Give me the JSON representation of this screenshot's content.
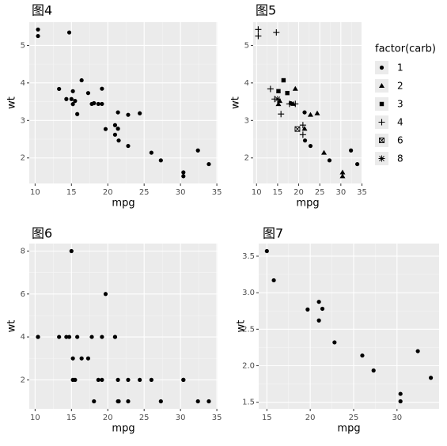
{
  "chart_data": [
    {
      "type": "scatter",
      "title": "图4",
      "xlabel": "mpg",
      "ylabel": "wt",
      "grid": true,
      "color": "#000000",
      "x": [
        21.0,
        21.0,
        22.8,
        21.4,
        18.7,
        18.1,
        14.3,
        24.4,
        22.8,
        19.2,
        17.8,
        16.4,
        17.3,
        15.2,
        10.4,
        10.4,
        14.7,
        32.4,
        30.4,
        33.9,
        21.5,
        15.5,
        15.2,
        13.3,
        19.2,
        27.3,
        26.0,
        30.4,
        15.8,
        19.7,
        15.0,
        21.4
      ],
      "y": [
        2.62,
        2.875,
        2.32,
        3.215,
        3.44,
        3.46,
        3.57,
        3.19,
        3.15,
        3.44,
        3.44,
        4.07,
        3.73,
        3.78,
        5.25,
        5.424,
        5.345,
        2.2,
        1.615,
        1.835,
        2.465,
        3.52,
        3.435,
        3.84,
        3.845,
        1.935,
        2.14,
        1.513,
        3.17,
        2.77,
        3.57,
        2.78
      ],
      "xlim": [
        9.2,
        35.1
      ],
      "ylim": [
        1.32,
        5.62
      ],
      "xticks": [
        10,
        15,
        20,
        25,
        30,
        35
      ],
      "yticks": [
        2,
        3,
        4,
        5
      ]
    },
    {
      "type": "scatter",
      "title": "图5",
      "xlabel": "mpg",
      "ylabel": "wt",
      "grid": true,
      "legend_title": "factor(carb)",
      "legend": "right",
      "series": [
        {
          "name": "1",
          "color": "#000000",
          "shape": "circle",
          "x": [
            22.8,
            21.4,
            18.1,
            32.4,
            33.9,
            21.5,
            27.3
          ],
          "y": [
            2.32,
            3.215,
            3.46,
            2.2,
            1.835,
            2.465,
            1.935
          ]
        },
        {
          "name": "2",
          "color": "#000000",
          "shape": "triangle",
          "x": [
            18.7,
            24.4,
            22.8,
            30.4,
            15.5,
            15.2,
            19.2,
            26.0,
            30.4,
            21.4
          ],
          "y": [
            3.44,
            3.19,
            3.15,
            1.615,
            3.52,
            3.435,
            3.845,
            2.14,
            1.513,
            2.78
          ]
        },
        {
          "name": "3",
          "color": "#000000",
          "shape": "square",
          "x": [
            16.4,
            17.3,
            15.2
          ],
          "y": [
            4.07,
            3.73,
            3.78
          ]
        },
        {
          "name": "4",
          "color": "#000000",
          "shape": "plus",
          "x": [
            21.0,
            21.0,
            14.3,
            19.2,
            17.8,
            10.4,
            10.4,
            14.7,
            13.3,
            15.8
          ],
          "y": [
            2.62,
            2.875,
            3.57,
            3.44,
            3.44,
            5.25,
            5.424,
            5.345,
            3.84,
            3.17
          ]
        },
        {
          "name": "6",
          "color": "#000000",
          "shape": "boxcross",
          "x": [
            19.7
          ],
          "y": [
            2.77
          ]
        },
        {
          "name": "8",
          "color": "#000000",
          "shape": "asterisk",
          "x": [
            15.0
          ],
          "y": [
            3.57
          ]
        }
      ],
      "xlim": [
        9.2,
        35.1
      ],
      "ylim": [
        1.32,
        5.62
      ],
      "xticks": [
        10,
        15,
        20,
        25,
        30,
        35
      ],
      "yticks": [
        2,
        3,
        4,
        5
      ]
    },
    {
      "type": "scatter",
      "title": "图6",
      "xlabel": "mpg",
      "ylabel": "wt",
      "grid": true,
      "color": "#000000",
      "x": [
        21.0,
        21.0,
        22.8,
        21.4,
        18.7,
        18.1,
        14.3,
        24.4,
        22.8,
        19.2,
        17.8,
        16.4,
        17.3,
        15.2,
        10.4,
        10.4,
        14.7,
        32.4,
        30.4,
        33.9,
        21.5,
        15.5,
        15.2,
        13.3,
        19.2,
        27.3,
        26.0,
        30.4,
        15.8,
        19.7,
        15.0,
        21.4
      ],
      "y": [
        4,
        4,
        1,
        1,
        2,
        1,
        4,
        2,
        2,
        4,
        4,
        3,
        3,
        3,
        4,
        4,
        4,
        1,
        2,
        1,
        1,
        2,
        2,
        4,
        2,
        1,
        2,
        2,
        4,
        6,
        8,
        2
      ],
      "xlim": [
        9.2,
        35.1
      ],
      "ylim": [
        0.65,
        8.35
      ],
      "xticks": [
        10,
        15,
        20,
        25,
        30,
        35
      ],
      "yticks": [
        2,
        4,
        6,
        8
      ]
    },
    {
      "type": "scatter",
      "title": "图7",
      "xlabel": "mpg",
      "ylabel": "wt",
      "grid": true,
      "color": "#000000",
      "x": [
        21.0,
        21.0,
        22.8,
        32.4,
        30.4,
        33.9,
        27.3,
        26.0,
        30.4,
        15.8,
        19.7,
        15.0,
        21.4
      ],
      "y": [
        2.62,
        2.875,
        2.32,
        2.2,
        1.615,
        1.835,
        1.935,
        2.14,
        1.513,
        3.17,
        2.77,
        3.57,
        2.78
      ],
      "xlim": [
        14.06,
        34.85
      ],
      "ylim": [
        1.41,
        3.673
      ],
      "xticks": [
        15,
        20,
        25,
        30
      ],
      "yticks": [
        {
          "value": 1.5,
          "label": "1.5"
        },
        {
          "value": 2.0,
          "label": "2.0"
        },
        {
          "value": 2.5,
          "label": "2.5"
        },
        {
          "value": 3.0,
          "label": "3.0"
        },
        {
          "value": 3.5,
          "label": "3.5"
        }
      ]
    }
  ]
}
